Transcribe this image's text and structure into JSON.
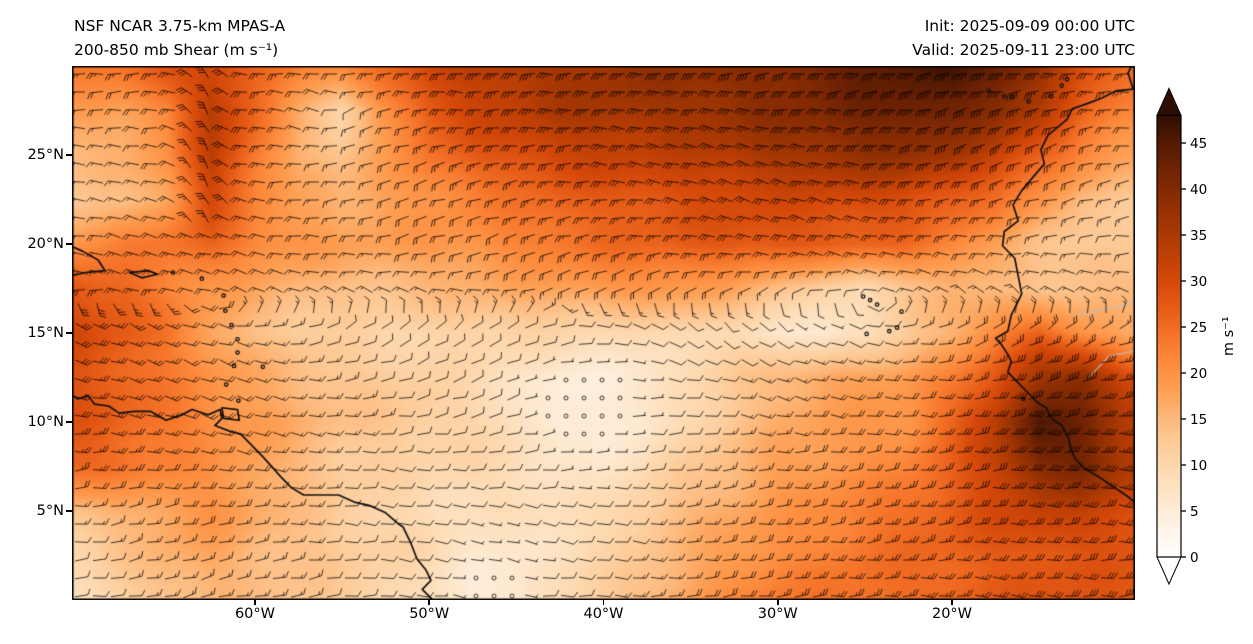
{
  "header": {
    "title_line1": "NSF NCAR 3.75-km MPAS-A",
    "title_line2": "200-850 mb Shear (m s⁻¹)",
    "init_time": "Init: 2025-09-09 00:00 UTC",
    "valid_time": "Valid: 2025-09-11 23:00 UTC"
  },
  "chart_data": {
    "type": "heatmap",
    "title": "NSF NCAR 3.75-km MPAS-A 200-850 mb Shear",
    "units": "m s⁻¹",
    "lon_range": [
      -70.5,
      -9.5
    ],
    "lat_range": [
      0,
      30
    ],
    "x_ticks": [
      {
        "lon": -60,
        "label": "60°W"
      },
      {
        "lon": -50,
        "label": "50°W"
      },
      {
        "lon": -40,
        "label": "40°W"
      },
      {
        "lon": -30,
        "label": "30°W"
      },
      {
        "lon": -20,
        "label": "20°W"
      }
    ],
    "y_ticks": [
      {
        "lat": 25,
        "label": "25°N"
      },
      {
        "lat": 20,
        "label": "20°N"
      },
      {
        "lat": 15,
        "label": "15°N"
      },
      {
        "lat": 10,
        "label": "10°N"
      },
      {
        "lat": 5,
        "label": "5°N"
      }
    ],
    "colorbar": {
      "label": "m s⁻¹",
      "ticks": [
        0,
        5,
        10,
        15,
        20,
        25,
        30,
        35,
        40,
        45
      ],
      "vmin": 0,
      "vmax": 48,
      "extend": "both",
      "stops": [
        [
          0,
          "#ffffff"
        ],
        [
          4,
          "#fef0e0"
        ],
        [
          8,
          "#fde0bd"
        ],
        [
          12,
          "#fdcd9b"
        ],
        [
          15,
          "#fdb97c"
        ],
        [
          18,
          "#fda055"
        ],
        [
          21,
          "#fd8c3e"
        ],
        [
          24,
          "#f5742a"
        ],
        [
          27,
          "#e65c17"
        ],
        [
          30,
          "#d4480a"
        ],
        [
          33,
          "#bc3f05"
        ],
        [
          36,
          "#a33603"
        ],
        [
          39,
          "#8a2d03"
        ],
        [
          42,
          "#712303"
        ],
        [
          45,
          "#541a02"
        ],
        [
          48,
          "#2e0e02"
        ]
      ]
    },
    "shear_field": {
      "name": "200-850 mb vertical wind shear magnitude",
      "units": "m s⁻¹",
      "lats": [
        30,
        27.5,
        25,
        22.5,
        20,
        17.5,
        15,
        12.5,
        10,
        7.5,
        5,
        2.5,
        0
      ],
      "lons": [
        -70,
        -67.5,
        -65,
        -62.5,
        -60,
        -57.5,
        -55,
        -52.5,
        -50,
        -47.5,
        -45,
        -42.5,
        -40,
        -37.5,
        -35,
        -32.5,
        -30,
        -27.5,
        -25,
        -22.5,
        -20,
        -17.5,
        -15,
        -12.5,
        -10
      ],
      "values": [
        [
          24,
          25,
          28,
          30,
          26,
          24,
          22,
          26,
          30,
          33,
          35,
          36,
          37,
          38,
          38,
          39,
          40,
          42,
          44,
          45,
          46,
          44,
          38,
          30,
          25
        ],
        [
          18,
          18,
          22,
          34,
          26,
          16,
          10,
          20,
          28,
          31,
          33,
          35,
          36,
          36,
          37,
          38,
          39,
          40,
          42,
          43,
          42,
          40,
          34,
          26,
          22
        ],
        [
          15,
          16,
          20,
          33,
          24,
          16,
          14,
          18,
          24,
          27,
          29,
          31,
          32,
          32,
          33,
          34,
          36,
          37,
          38,
          38,
          36,
          32,
          27,
          22,
          18
        ],
        [
          13,
          14,
          18,
          30,
          22,
          17,
          16,
          18,
          20,
          22,
          24,
          26,
          27,
          28,
          29,
          30,
          30,
          30,
          30,
          29,
          27,
          24,
          20,
          14,
          13
        ],
        [
          20,
          22,
          24,
          26,
          22,
          20,
          18,
          18,
          19,
          20,
          22,
          24,
          25,
          26,
          27,
          28,
          28,
          27,
          26,
          25,
          22,
          18,
          14,
          12,
          12
        ],
        [
          28,
          26,
          22,
          19,
          17,
          15,
          14,
          14,
          15,
          16,
          17,
          18,
          19,
          20,
          19,
          17,
          14,
          11,
          10,
          13,
          16,
          14,
          13,
          14,
          15
        ],
        [
          30,
          27,
          24,
          18,
          14,
          12,
          11,
          10,
          10,
          11,
          11,
          10,
          9,
          9,
          10,
          9,
          7,
          5,
          8,
          12,
          16,
          22,
          26,
          20,
          16
        ],
        [
          28,
          26,
          23,
          20,
          17,
          15,
          13,
          12,
          11,
          9,
          7,
          5,
          5,
          6,
          9,
          12,
          15,
          17,
          18,
          19,
          22,
          28,
          36,
          40,
          30
        ],
        [
          28,
          26,
          24,
          21,
          19,
          16,
          14,
          13,
          12,
          10,
          8,
          4,
          5,
          6,
          10,
          13,
          16,
          18,
          19,
          20,
          26,
          34,
          45,
          42,
          34
        ],
        [
          26,
          24,
          22,
          20,
          18,
          15,
          12,
          11,
          10,
          10,
          9,
          7,
          6,
          9,
          12,
          15,
          18,
          19,
          20,
          22,
          26,
          32,
          40,
          42,
          35
        ],
        [
          14,
          16,
          18,
          20,
          17,
          14,
          12,
          10,
          9,
          8,
          8,
          8,
          9,
          12,
          15,
          17,
          19,
          21,
          23,
          25,
          27,
          30,
          32,
          32,
          30
        ],
        [
          10,
          13,
          16,
          17,
          15,
          14,
          12,
          11,
          9,
          6,
          6,
          8,
          10,
          13,
          16,
          19,
          21,
          22,
          24,
          25,
          26,
          27,
          28,
          28,
          28
        ],
        [
          8,
          11,
          14,
          15,
          14,
          13,
          12,
          10,
          8,
          5,
          5,
          9,
          12,
          15,
          18,
          21,
          23,
          24,
          25,
          25,
          26,
          27,
          28,
          28,
          28
        ]
      ]
    },
    "wind_barbs": {
      "convention": "shear-vector barbs; full barb = 10 m s⁻¹, half barb = 5 m s⁻¹, open circle = calm",
      "vortex_center": {
        "lon": -55.5,
        "lat": 27.3
      },
      "northerly_band_lon": -63
    }
  }
}
